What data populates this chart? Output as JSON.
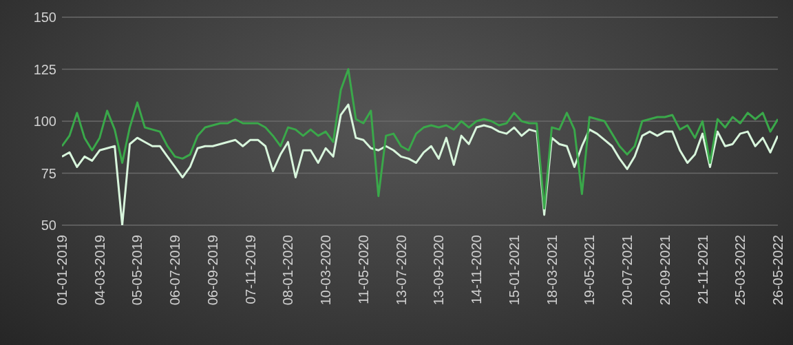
{
  "chart_data": {
    "type": "line",
    "categories": [
      "01-01-2019",
      null,
      null,
      null,
      null,
      "04-03-2019",
      null,
      null,
      null,
      null,
      "05-05-2019",
      null,
      null,
      null,
      null,
      "06-07-2019",
      null,
      null,
      null,
      null,
      "06-09-2019",
      null,
      null,
      null,
      null,
      "07-11-2019",
      null,
      null,
      null,
      null,
      "08-01-2020",
      null,
      null,
      null,
      null,
      "10-03-2020",
      null,
      null,
      null,
      null,
      "11-05-2020",
      null,
      null,
      null,
      null,
      "13-07-2020",
      null,
      null,
      null,
      null,
      "13-09-2020",
      null,
      null,
      null,
      null,
      "14-11-2020",
      null,
      null,
      null,
      null,
      "15-01-2021",
      null,
      null,
      null,
      null,
      "18-03-2021",
      null,
      null,
      null,
      null,
      "19-05-2021",
      null,
      null,
      null,
      null,
      "20-07-2021",
      null,
      null,
      null,
      null,
      "20-09-2021",
      null,
      null,
      null,
      null,
      "21-11-2021",
      null,
      null,
      null,
      null,
      "25-03-2022",
      null,
      null,
      null,
      null,
      "26-05-2022"
    ],
    "series": [
      {
        "color": "#d8f5dc",
        "values": [
          83,
          85,
          78,
          83,
          81,
          86,
          87,
          88,
          50,
          89,
          92,
          90,
          88,
          88,
          83,
          78,
          73,
          78,
          87,
          88,
          88,
          89,
          90,
          91,
          88,
          91,
          91,
          88,
          76,
          84,
          90,
          73,
          86,
          86,
          80,
          87,
          83,
          103,
          108,
          92,
          91,
          87,
          86,
          88,
          86,
          83,
          82,
          80,
          85,
          88,
          82,
          92,
          79,
          93,
          89,
          97,
          98,
          97,
          95,
          94,
          97,
          93,
          96,
          95,
          55,
          92,
          89,
          88,
          78,
          88,
          96,
          94,
          91,
          88,
          82,
          77,
          83,
          93,
          95,
          93,
          95,
          95,
          86,
          80,
          84,
          94,
          78,
          95,
          88,
          89,
          94,
          95,
          88,
          92,
          85,
          93
        ]
      },
      {
        "color": "#3aa84a",
        "values": [
          88,
          93,
          104,
          92,
          86,
          92,
          105,
          96,
          80,
          97,
          109,
          97,
          96,
          95,
          88,
          83,
          82,
          84,
          93,
          97,
          98,
          99,
          99,
          101,
          99,
          99,
          99,
          97,
          93,
          88,
          97,
          96,
          93,
          96,
          93,
          95,
          90,
          115,
          125,
          101,
          99,
          105,
          64,
          93,
          94,
          88,
          86,
          94,
          97,
          98,
          97,
          98,
          96,
          100,
          97,
          100,
          101,
          100,
          98,
          99,
          104,
          100,
          99,
          99,
          58,
          97,
          96,
          104,
          96,
          65,
          102,
          101,
          100,
          94,
          88,
          84,
          88,
          100,
          101,
          102,
          102,
          103,
          96,
          98,
          92,
          100,
          80,
          101,
          97,
          102,
          99,
          104,
          101,
          104,
          95,
          101
        ]
      }
    ],
    "ylim": [
      50,
      150
    ],
    "yticks": [
      50,
      75,
      100,
      125,
      150
    ],
    "grid": "y",
    "line_style": "solid"
  }
}
